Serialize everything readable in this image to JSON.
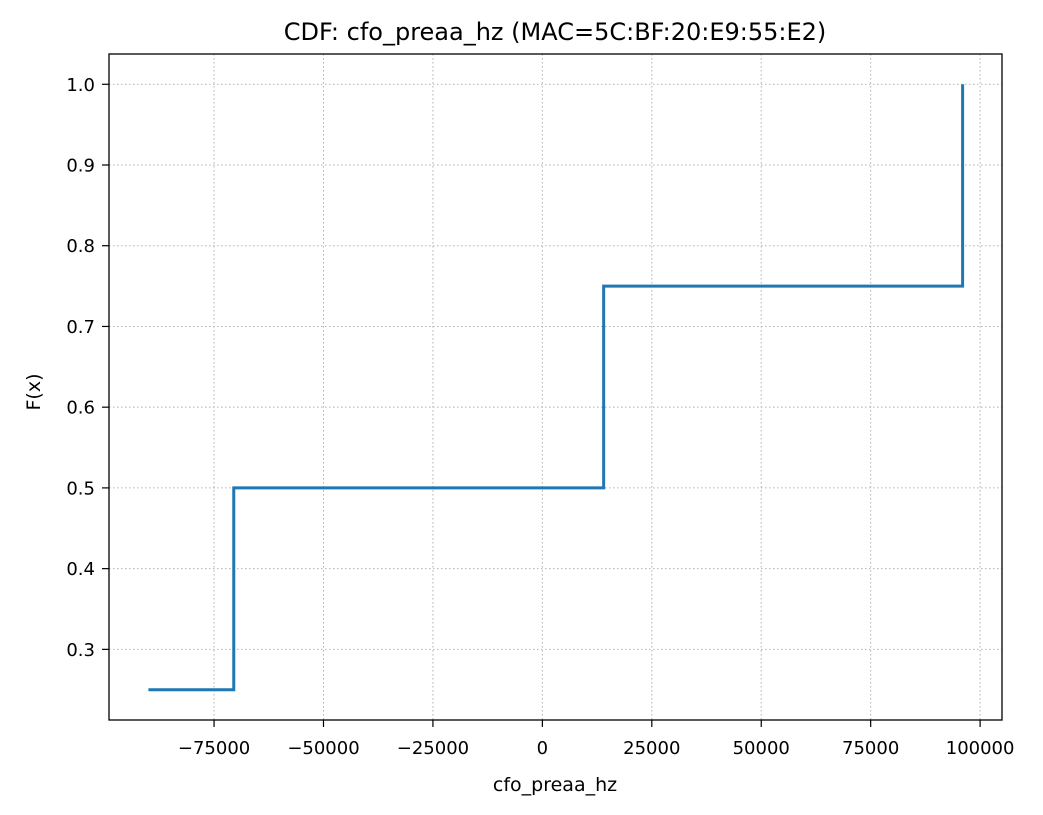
{
  "chart_data": {
    "type": "line",
    "title": "CDF: cfo_preaa_hz (MAC=5C:BF:20:E9:55:E2)",
    "xlabel": "cfo_preaa_hz",
    "ylabel": "F(x)",
    "xlim": [
      -99000,
      105000
    ],
    "ylim": [
      0.2125,
      1.0375
    ],
    "xticks": [
      -75000,
      -50000,
      -25000,
      0,
      25000,
      50000,
      75000,
      100000
    ],
    "xtick_labels": [
      "−75000",
      "−50000",
      "−25000",
      "0",
      "25000",
      "50000",
      "75000",
      "100000"
    ],
    "yticks": [
      0.3,
      0.4,
      0.5,
      0.6,
      0.7,
      0.8,
      0.9,
      1.0
    ],
    "ytick_labels": [
      "0.3",
      "0.4",
      "0.5",
      "0.6",
      "0.7",
      "0.8",
      "0.9",
      "1.0"
    ],
    "grid": true,
    "series": [
      {
        "color": "#1f77b4",
        "step": "post",
        "x": [
          -90000,
          -70500,
          14000,
          96000,
          96000
        ],
        "y": [
          0.25,
          0.5,
          0.75,
          0.75,
          1.0
        ]
      }
    ]
  }
}
